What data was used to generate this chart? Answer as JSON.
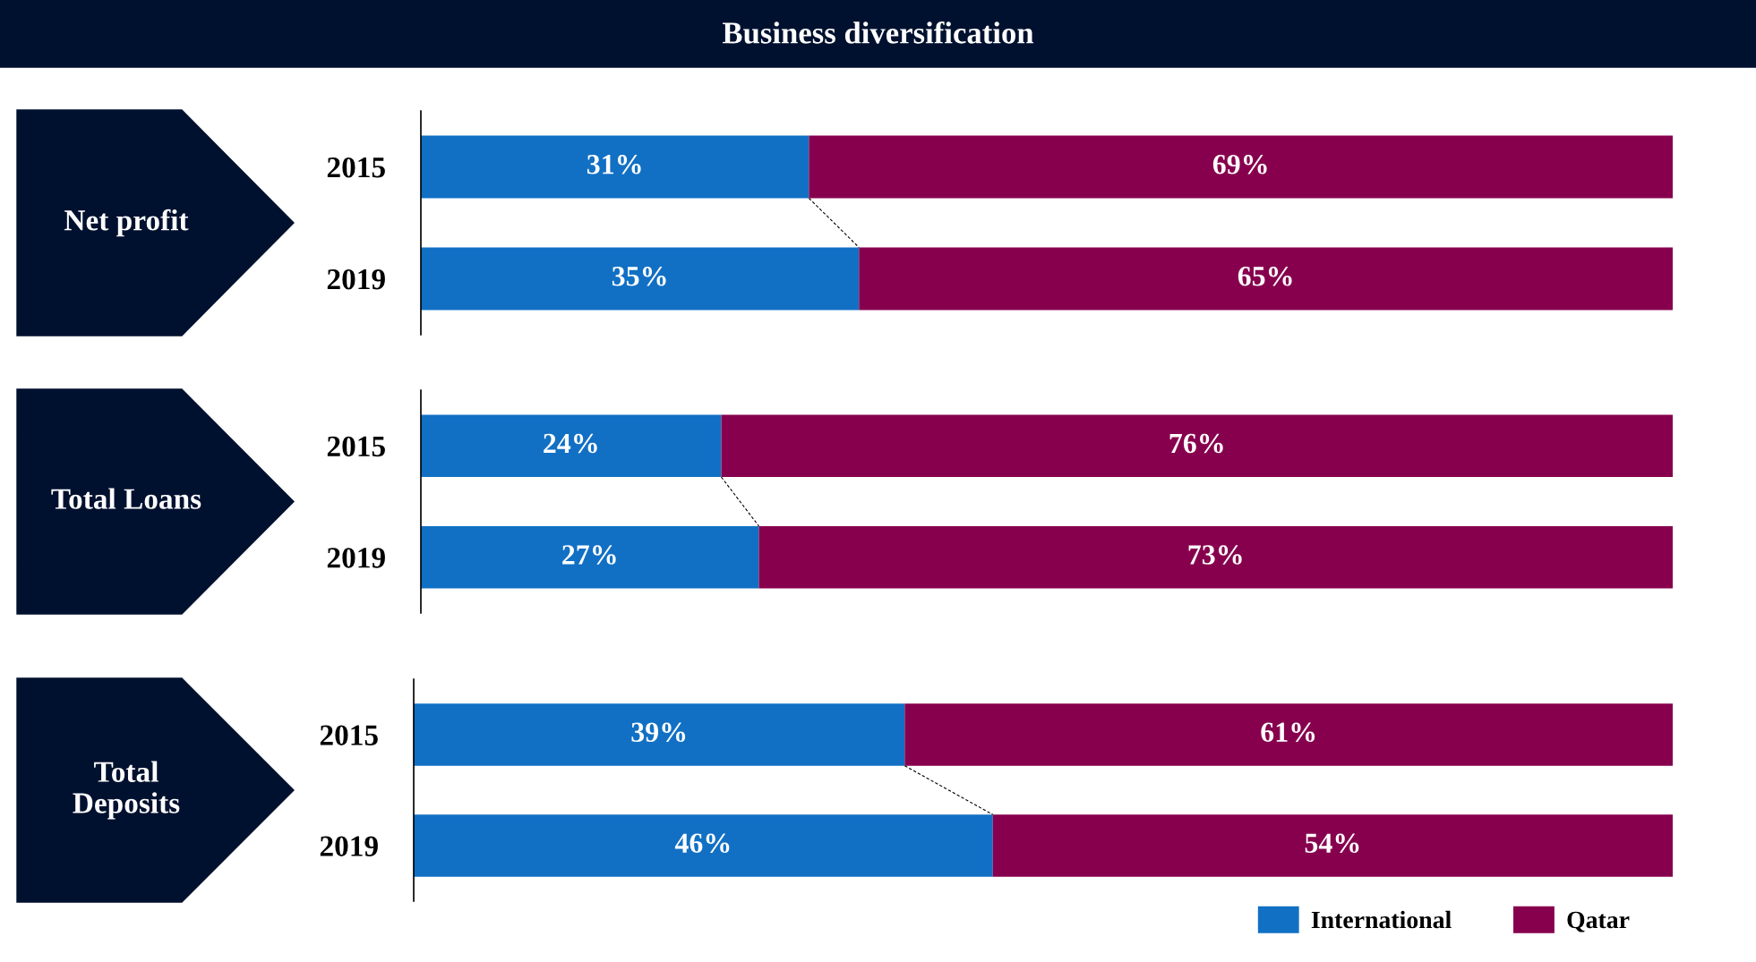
{
  "chart_data": [
    {
      "type": "bar",
      "orientation": "horizontal",
      "stacked": true,
      "title": "Business diversification",
      "ylabel": "Net profit",
      "categories": [
        "2015",
        "2019"
      ],
      "series": [
        {
          "color": "#1170c4",
          "values": [
            31,
            35
          ],
          "value_labels": [
            "31%",
            "35%"
          ]
        },
        {
          "color": "#87004e",
          "values": [
            69,
            65
          ],
          "value_labels": [
            "69%",
            "65%"
          ]
        }
      ]
    },
    {
      "type": "bar",
      "orientation": "horizontal",
      "stacked": true,
      "ylabel": "Total Loans",
      "categories": [
        "2015",
        "2019"
      ],
      "series": [
        {
          "color": "#1170c4",
          "values": [
            24,
            27
          ],
          "value_labels": [
            "24%",
            "27%"
          ]
        },
        {
          "color": "#87004e",
          "values": [
            76,
            73
          ],
          "value_labels": [
            "76%",
            "73%"
          ]
        }
      ]
    },
    {
      "type": "bar",
      "orientation": "horizontal",
      "stacked": true,
      "ylabel": "Total\nDeposits",
      "categories": [
        "2015",
        "2019"
      ],
      "legend": "bottom right",
      "series": [
        {
          "name": "International",
          "color": "#1170c4",
          "values": [
            39,
            46
          ],
          "value_labels": [
            "39%",
            "46%"
          ]
        },
        {
          "name": "Qatar",
          "color": "#87004e",
          "values": [
            61,
            54
          ],
          "value_labels": [
            "61%",
            "54%"
          ]
        }
      ]
    }
  ]
}
